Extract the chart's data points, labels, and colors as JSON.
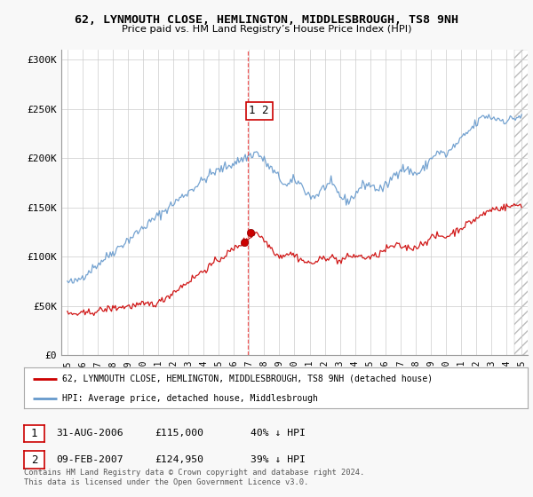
{
  "title": "62, LYNMOUTH CLOSE, HEMLINGTON, MIDDLESBROUGH, TS8 9NH",
  "subtitle": "Price paid vs. HM Land Registry’s House Price Index (HPI)",
  "legend_line1": "62, LYNMOUTH CLOSE, HEMLINGTON, MIDDLESBROUGH, TS8 9NH (detached house)",
  "legend_line2": "HPI: Average price, detached house, Middlesbrough",
  "table_rows": [
    {
      "num": "1",
      "date": "31-AUG-2006",
      "price": "£115,000",
      "hpi": "40% ↓ HPI"
    },
    {
      "num": "2",
      "date": "09-FEB-2007",
      "price": "£124,950",
      "hpi": "39% ↓ HPI"
    }
  ],
  "footnote": "Contains HM Land Registry data © Crown copyright and database right 2024.\nThis data is licensed under the Open Government Licence v3.0.",
  "marker1_x": 2006.67,
  "marker1_y": 115000,
  "marker2_x": 2007.1,
  "marker2_y": 124950,
  "vline_x": 2006.9,
  "ylim": [
    0,
    310000
  ],
  "yticks": [
    0,
    50000,
    100000,
    150000,
    200000,
    250000,
    300000
  ],
  "ytick_labels": [
    "£0",
    "£50K",
    "£100K",
    "£150K",
    "£200K",
    "£250K",
    "£300K"
  ],
  "xmin": 1995,
  "xmax": 2025,
  "background_color": "#f8f8f8",
  "plot_bg_color": "#ffffff",
  "red_color": "#cc0000",
  "blue_color": "#6699cc",
  "grid_color": "#cccccc",
  "hatch_start": 2024.5
}
